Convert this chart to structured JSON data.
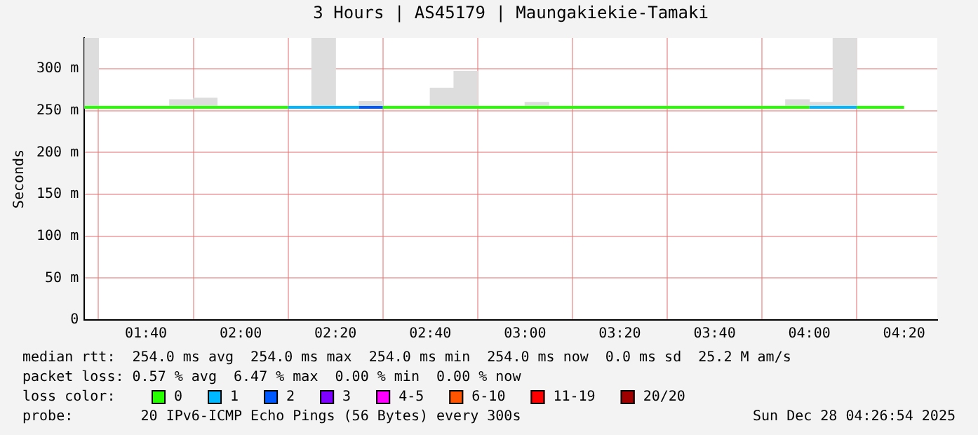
{
  "chart_data": {
    "type": "line",
    "title": "3 Hours | AS45179 | Maungakiekie-Tamaki",
    "ylabel": "Seconds",
    "legend_title": "loss color:",
    "legend": "bottom",
    "grid": true,
    "marker": "none",
    "line_style": "solid",
    "xlim": [
      1.45,
      4.45
    ],
    "xticks": [
      {
        "value": 1.6667,
        "label": "01:40"
      },
      {
        "value": 2,
        "label": "02:00"
      },
      {
        "value": 2.3333,
        "label": "02:20"
      },
      {
        "value": 2.6667,
        "label": "02:40"
      },
      {
        "value": 3,
        "label": "03:00"
      },
      {
        "value": 3.3333,
        "label": "03:20"
      },
      {
        "value": 3.6667,
        "label": "03:40"
      },
      {
        "value": 4,
        "label": "04:00"
      },
      {
        "value": 4.3333,
        "label": "04:20"
      }
    ],
    "ylim": [
      0,
      337
    ],
    "yticks": [
      {
        "value": 0,
        "label": "0"
      },
      {
        "value": 50,
        "label": "50 m"
      },
      {
        "value": 100,
        "label": "100 m"
      },
      {
        "value": 150,
        "label": "150 m"
      },
      {
        "value": 200,
        "label": "200 m"
      },
      {
        "value": 250,
        "label": "250 m"
      },
      {
        "value": 300,
        "label": "300 m"
      }
    ],
    "series": [
      {
        "type": "bar",
        "color": "#dddddd",
        "x": [
          1.4583,
          1.7917,
          1.875,
          2.2917,
          2.4583,
          2.7083,
          2.7917,
          3.0417,
          3.9583,
          4.0417,
          4.125
        ],
        "base": [
          253,
          253,
          253,
          253,
          253,
          253,
          253,
          253,
          253,
          253,
          253
        ],
        "values": [
          84,
          10,
          12,
          84,
          8,
          24,
          44,
          7,
          10,
          7,
          84
        ]
      },
      {
        "name": "0",
        "color": "#26ff00",
        "x": [
          1.45,
          1.5,
          1.5833,
          1.6667,
          1.75,
          1.8333,
          1.9167,
          2,
          2.0833,
          2.1667,
          2.25,
          2.3333,
          2.4167,
          2.5,
          2.5833,
          2.6667,
          2.75,
          2.8333,
          2.9167,
          3,
          3.0833,
          3.1667,
          3.25,
          3.3333,
          3.4167,
          3.5,
          3.5833,
          3.6667,
          3.75,
          3.8333,
          3.9167,
          4,
          4.0833,
          4.1667,
          4.25,
          4.3333
        ],
        "values": [
          254,
          254,
          254,
          254,
          254,
          254,
          254,
          254,
          254,
          254,
          null,
          null,
          null,
          254,
          254,
          254,
          254,
          254,
          254,
          254,
          254,
          254,
          254,
          254,
          254,
          254,
          254,
          254,
          254,
          254,
          254,
          254,
          null,
          254,
          254,
          254
        ]
      },
      {
        "name": "1",
        "color": "#00b8ff",
        "x": [
          2.1667,
          2.25,
          2.3333,
          2.4167,
          3,
          4,
          4.0833,
          4.1667
        ],
        "values": [
          254,
          254,
          254,
          254,
          null,
          254,
          254,
          254
        ]
      },
      {
        "name": "2",
        "color": "#0059ff",
        "x": [
          2.4167,
          2.5
        ],
        "values": [
          254,
          254
        ]
      },
      {
        "name": "3",
        "color": "#7e00ff"
      },
      {
        "name": "4-5",
        "color": "#ff00ff"
      },
      {
        "name": "6-10",
        "color": "#ff5500"
      },
      {
        "name": "11-19",
        "color": "#ff0000"
      },
      {
        "name": "20/20",
        "color": "#a10000"
      }
    ],
    "annotations": [
      "median rtt:  254.0 ms avg  254.0 ms max  254.0 ms min  254.0 ms now  0.0 ms sd  25.2 M am/s",
      "packet loss: 0.57 % avg  6.47 % max  0.00 % min  0.00 % now",
      "probe:        20 IPv6-ICMP Echo Pings (56 Bytes) every 300s",
      "Sun Dec 28 04:26:54 2025"
    ]
  }
}
